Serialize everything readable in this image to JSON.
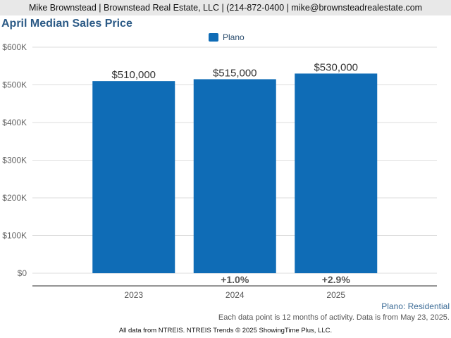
{
  "header": {
    "contact": "Mike Brownstead | Brownstead Real Estate, LLC | (214-872-0400 | mike@brownsteadrealestate.com"
  },
  "colors": {
    "bar": "#0f6cb6",
    "grid": "#dddddd",
    "axis": "#555555",
    "title": "#2b5a86",
    "change_label": "#555555"
  },
  "chart_data": {
    "type": "bar",
    "title": "April Median Sales Price",
    "categories": [
      "2023",
      "2024",
      "2025"
    ],
    "series": [
      {
        "name": "Plano",
        "values": [
          510000,
          515000,
          530000
        ],
        "value_labels": [
          "$510,000",
          "$515,000",
          "$530,000"
        ]
      }
    ],
    "change_labels": [
      "",
      "+1.0%",
      "+2.9%"
    ],
    "ylim": [
      0,
      600000
    ],
    "yticks": [
      0,
      100000,
      200000,
      300000,
      400000,
      500000,
      600000
    ],
    "ytick_labels": [
      "$0",
      "$100K",
      "$200K",
      "$300K",
      "$400K",
      "$500K",
      "$600K"
    ],
    "grid": true,
    "legend_position": "top-center"
  },
  "footnotes": {
    "series_label": "Plano: Residential",
    "note": "Each data point is 12 months of activity. Data is from May 23, 2025.",
    "source": "All data from NTREIS. NTREIS Trends © 2025 ShowingTime Plus, LLC."
  }
}
